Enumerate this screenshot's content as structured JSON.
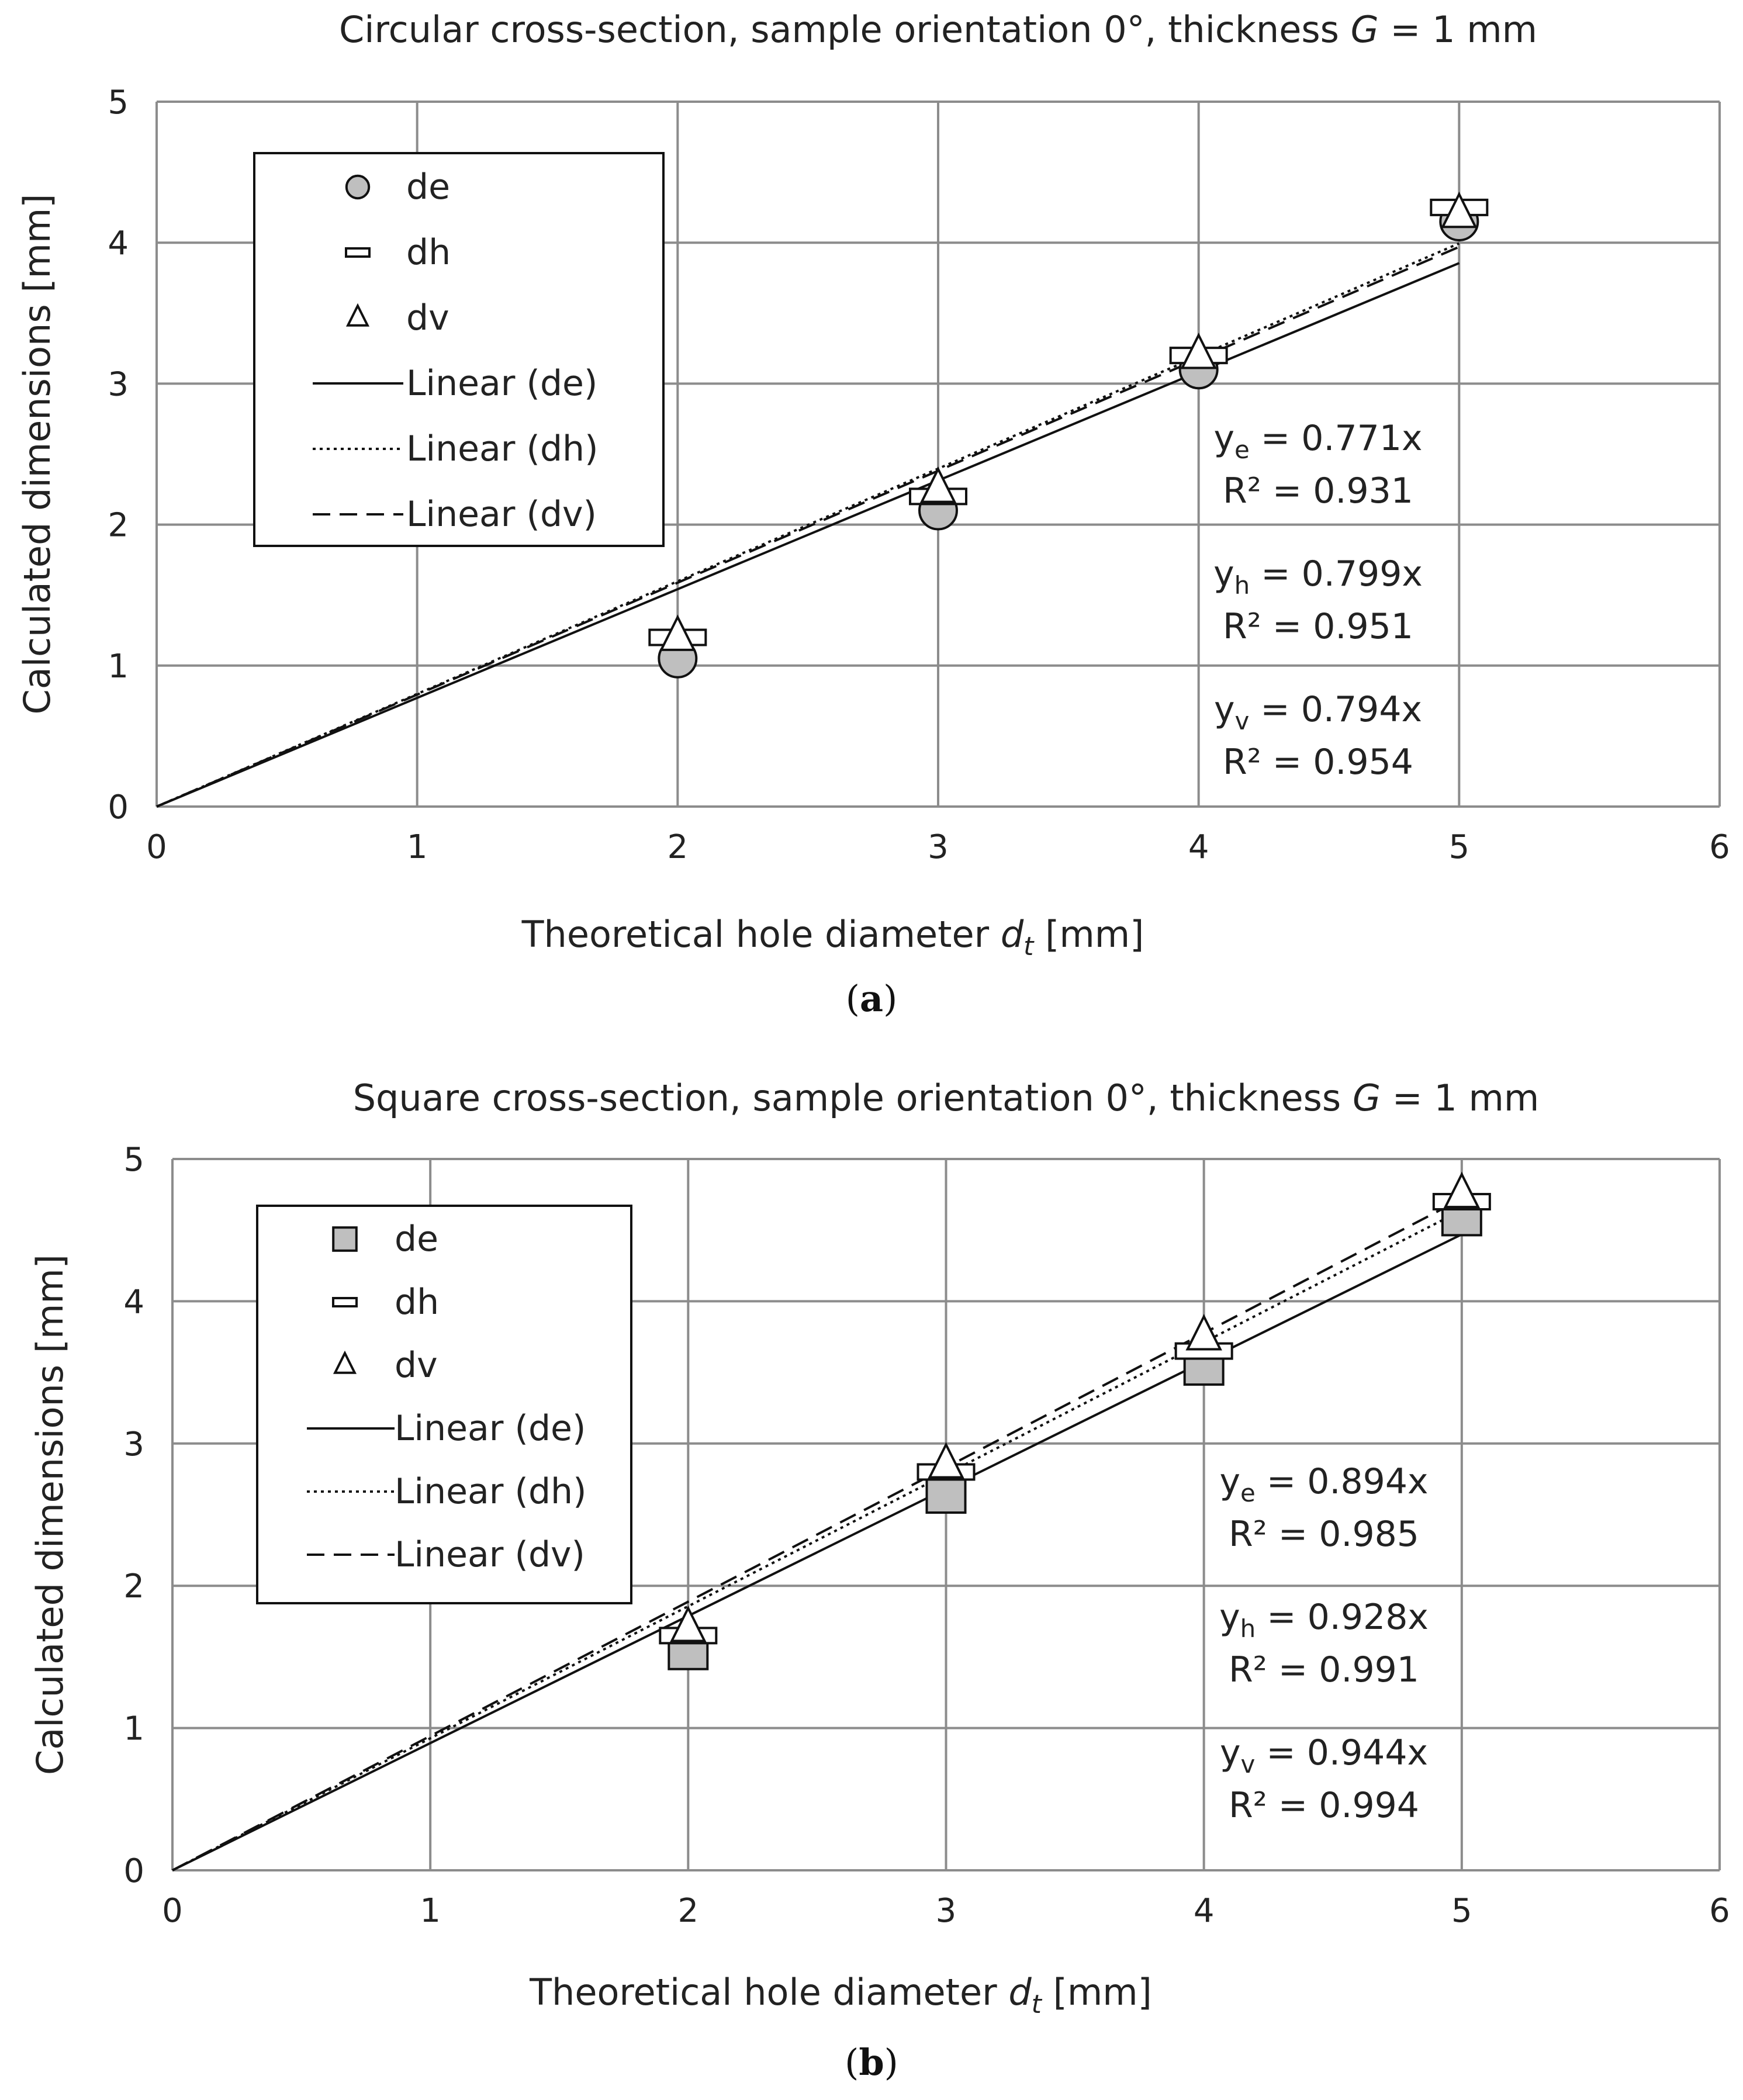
{
  "chart_data": [
    {
      "type": "scatter",
      "caption_label": "a",
      "title": {
        "prefix": "Circular cross-section, sample orientation 0°, thickness ",
        "var": "G",
        "suffix": " = 1 mm"
      },
      "xlabel": {
        "prefix": "Theoretical hole diameter ",
        "var": "d",
        "sub": "t",
        "suffix": " [mm]"
      },
      "ylabel": "Calculated dimensions [mm]",
      "xlim": [
        0,
        6
      ],
      "ylim": [
        0,
        5
      ],
      "xticks": [
        "0",
        "1",
        "2",
        "3",
        "4",
        "5",
        "6"
      ],
      "yticks": [
        "0",
        "1",
        "2",
        "3",
        "4",
        "5"
      ],
      "grid": true,
      "legend_position": "upper-left",
      "marker_style": "circle",
      "series": [
        {
          "name": "de",
          "x": [
            2,
            3,
            4,
            5
          ],
          "values": [
            1.05,
            2.1,
            3.1,
            4.15
          ]
        },
        {
          "name": "dh",
          "x": [
            2,
            3,
            4,
            5
          ],
          "values": [
            1.2,
            2.2,
            3.2,
            4.25
          ]
        },
        {
          "name": "dv",
          "x": [
            2,
            3,
            4,
            5
          ],
          "values": [
            1.2,
            2.25,
            3.2,
            4.2
          ]
        }
      ],
      "trendlines": [
        {
          "name": "Linear (de)",
          "slope": 0.771,
          "style": "solid"
        },
        {
          "name": "Linear (dh)",
          "slope": 0.799,
          "style": "dotted"
        },
        {
          "name": "Linear (dv)",
          "slope": 0.794,
          "style": "dashed"
        }
      ],
      "annotations": [
        {
          "y": "y",
          "sub": "e",
          "eq": " = 0.771x",
          "r2": "R² = 0.931"
        },
        {
          "y": "y",
          "sub": "h",
          "eq": " = 0.799x",
          "r2": "R² = 0.951"
        },
        {
          "y": "y",
          "sub": "v",
          "eq": " = 0.794x",
          "r2": "R² = 0.954"
        }
      ]
    },
    {
      "type": "scatter",
      "caption_label": "b",
      "title": {
        "prefix": "Square cross-section, sample orientation 0°, thickness ",
        "var": "G",
        "suffix": " = 1 mm"
      },
      "xlabel": {
        "prefix": "Theoretical hole diameter ",
        "var": "d",
        "sub": "t",
        "suffix": " [mm]"
      },
      "ylabel": "Calculated dimensions [mm]",
      "xlim": [
        0,
        6
      ],
      "ylim": [
        0,
        5
      ],
      "xticks": [
        "0",
        "1",
        "2",
        "3",
        "4",
        "5",
        "6"
      ],
      "yticks": [
        "0",
        "1",
        "2",
        "3",
        "4",
        "5"
      ],
      "grid": true,
      "legend_position": "upper-left",
      "marker_style": "square",
      "series": [
        {
          "name": "de",
          "x": [
            2,
            3,
            4,
            5
          ],
          "values": [
            1.55,
            2.65,
            3.55,
            4.6
          ]
        },
        {
          "name": "dh",
          "x": [
            2,
            3,
            4,
            5
          ],
          "values": [
            1.65,
            2.8,
            3.65,
            4.7
          ]
        },
        {
          "name": "dv",
          "x": [
            2,
            3,
            4,
            5
          ],
          "values": [
            1.7,
            2.85,
            3.75,
            4.75
          ]
        }
      ],
      "trendlines": [
        {
          "name": "Linear (de)",
          "slope": 0.894,
          "style": "solid"
        },
        {
          "name": "Linear (dh)",
          "slope": 0.928,
          "style": "dotted"
        },
        {
          "name": "Linear (dv)",
          "slope": 0.944,
          "style": "dashed"
        }
      ],
      "annotations": [
        {
          "y": "y",
          "sub": "e",
          "eq": " = 0.894x",
          "r2": "R² = 0.985"
        },
        {
          "y": "y",
          "sub": "h",
          "eq": " = 0.928x",
          "r2": "R² = 0.991"
        },
        {
          "y": "y",
          "sub": "v",
          "eq": " = 0.944x",
          "r2": "R² = 0.994"
        }
      ]
    }
  ],
  "colors": {
    "grid": "#8c8c8c",
    "marker_fill": "#bfbfbf",
    "ink": "#111111",
    "background": "#ffffff"
  }
}
